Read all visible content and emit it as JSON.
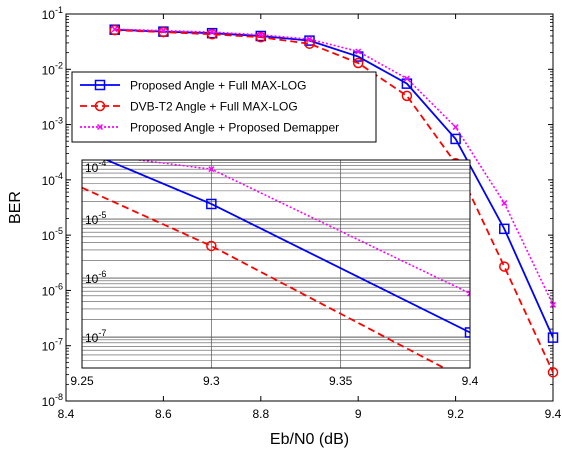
{
  "chart_data": [
    {
      "type": "line",
      "xlabel": "Eb/N0 (dB)",
      "ylabel": "BER",
      "xlim": [
        8.4,
        9.4
      ],
      "ylim": [
        1e-08,
        0.1
      ],
      "yscale": "log",
      "grid": false,
      "legend_placement": "upper-left",
      "x_ticks": [
        8.4,
        8.6,
        8.8,
        9,
        9.2,
        9.4
      ],
      "x_tick_labels": [
        "8.4",
        "8.6",
        "8.8",
        "9",
        "9.2",
        "9.4"
      ],
      "y_ticks": [
        -8,
        -7,
        -6,
        -5,
        -4,
        -3,
        -2,
        -1
      ],
      "series": [
        {
          "name": "Proposed Angle + Full MAX-LOG",
          "color": "#0000ff",
          "dash": "solid",
          "marker": "square",
          "x": [
            8.5,
            8.6,
            8.7,
            8.8,
            8.9,
            9.0,
            9.1,
            9.2,
            9.3,
            9.4
          ],
          "y": [
            0.052,
            0.048,
            0.045,
            0.04,
            0.033,
            0.017,
            0.0055,
            0.00055,
            1.3e-05,
            1.4e-07
          ]
        },
        {
          "name": "DVB-T2 Angle + Full MAX-LOG",
          "color": "#ff0000",
          "dash": "dashed",
          "marker": "circle",
          "x": [
            8.5,
            8.6,
            8.7,
            8.8,
            8.9,
            9.0,
            9.1,
            9.2,
            9.3,
            9.4
          ],
          "y": [
            0.051,
            0.047,
            0.043,
            0.038,
            0.029,
            0.013,
            0.0033,
            0.0002,
            2.7e-06,
            3.3e-08
          ]
        },
        {
          "name": "Proposed Angle + Proposed Demapper",
          "color": "#ff00ff",
          "dash": "dotted",
          "marker": "x",
          "x": [
            8.5,
            8.6,
            8.7,
            8.8,
            8.9,
            9.0,
            9.1,
            9.2,
            9.3,
            9.4
          ],
          "y": [
            0.053,
            0.05,
            0.047,
            0.042,
            0.035,
            0.021,
            0.0068,
            0.0009,
            3.8e-05,
            5.5e-07
          ]
        }
      ]
    },
    {
      "type": "line",
      "inset": true,
      "xlim": [
        9.25,
        9.4
      ],
      "ylim": [
        3e-08,
        0.0001
      ],
      "yscale": "log",
      "grid": true,
      "x_ticks": [
        9.25,
        9.3,
        9.35,
        9.4
      ],
      "x_tick_labels": [
        "9.25",
        "9.3",
        "9.35",
        "9.4"
      ],
      "y_ticks": [
        -7,
        -6,
        -5,
        -4
      ],
      "series": [
        {
          "name": "Proposed Angle + Full MAX-LOG",
          "color": "#0000ff",
          "dash": "solid",
          "marker": "square",
          "marker_x": [
            9.3,
            9.4
          ],
          "x": [
            9.25,
            9.3,
            9.4
          ],
          "y": [
            0.00015,
            1.8e-05,
            1.2e-07
          ]
        },
        {
          "name": "DVB-T2 Angle + Full MAX-LOG",
          "color": "#ff0000",
          "dash": "dashed",
          "marker": "circle",
          "marker_x": [
            9.3
          ],
          "x": [
            9.25,
            9.3,
            9.39
          ],
          "y": [
            3.4e-05,
            3.5e-06,
            3e-08
          ]
        },
        {
          "name": "Proposed Angle + Proposed Demapper",
          "color": "#ff00ff",
          "dash": "dotted",
          "marker": "x",
          "marker_x": [
            9.3,
            9.4
          ],
          "x": [
            9.272,
            9.3,
            9.4
          ],
          "y": [
            0.0001,
            7e-05,
            5.5e-07
          ]
        }
      ]
    }
  ]
}
